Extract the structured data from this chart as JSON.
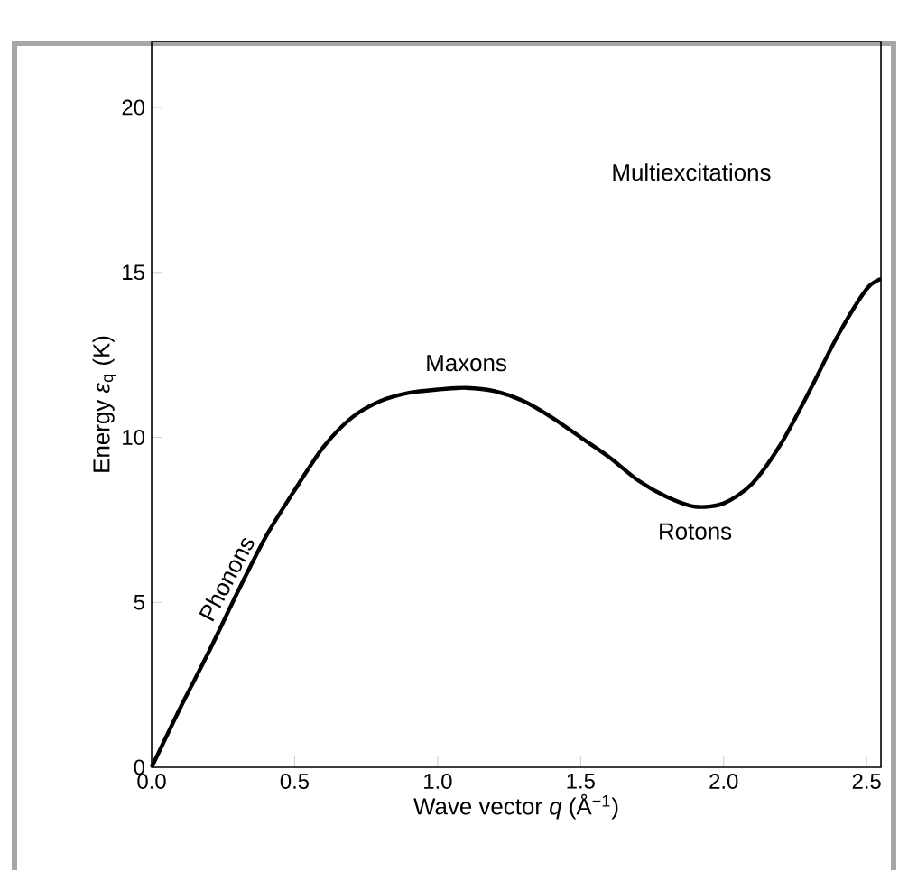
{
  "chart_data": {
    "type": "line",
    "xlabel": "Wave vector *q* (Å$^{−1}$)",
    "ylabel": "Energy *ε*$_{q}$ (K)",
    "x": [
      0,
      0.1,
      0.2,
      0.3,
      0.4,
      0.5,
      0.6,
      0.7,
      0.8,
      0.9,
      1.0,
      1.1,
      1.2,
      1.3,
      1.4,
      1.5,
      1.6,
      1.7,
      1.8,
      1.9,
      2.0,
      2.1,
      2.2,
      2.3,
      2.4,
      2.5,
      2.55
    ],
    "series": [
      {
        "color": "#000000",
        "values": [
          0,
          1.8,
          3.5,
          5.3,
          7.0,
          8.4,
          9.7,
          10.6,
          11.1,
          11.35,
          11.45,
          11.5,
          11.4,
          11.1,
          10.6,
          10.0,
          9.4,
          8.7,
          8.2,
          7.9,
          8.0,
          8.6,
          9.8,
          11.4,
          13.1,
          14.5,
          14.8
        ]
      }
    ],
    "xlim": [
      0,
      2.55
    ],
    "ylim": [
      0,
      22
    ],
    "xticks": [
      {
        "value": 0,
        "label": "0.0"
      },
      0.5,
      {
        "value": 1,
        "label": "1.0"
      },
      1.5,
      {
        "value": 2,
        "label": "2.0"
      },
      2.5
    ],
    "yticks": [
      0,
      5,
      10,
      15,
      20
    ],
    "annotations": [
      "Multiexcitations",
      {
        "text": "Maxons",
        "x": 1.1,
        "y": 11.5
      },
      {
        "text": "Phonons",
        "x": 0.3,
        "y": 5.3
      },
      {
        "text": "Rotons",
        "x": 1.9,
        "y": 7.9
      }
    ],
    "grid": false,
    "marker": "none",
    "line_style": "solid"
  }
}
